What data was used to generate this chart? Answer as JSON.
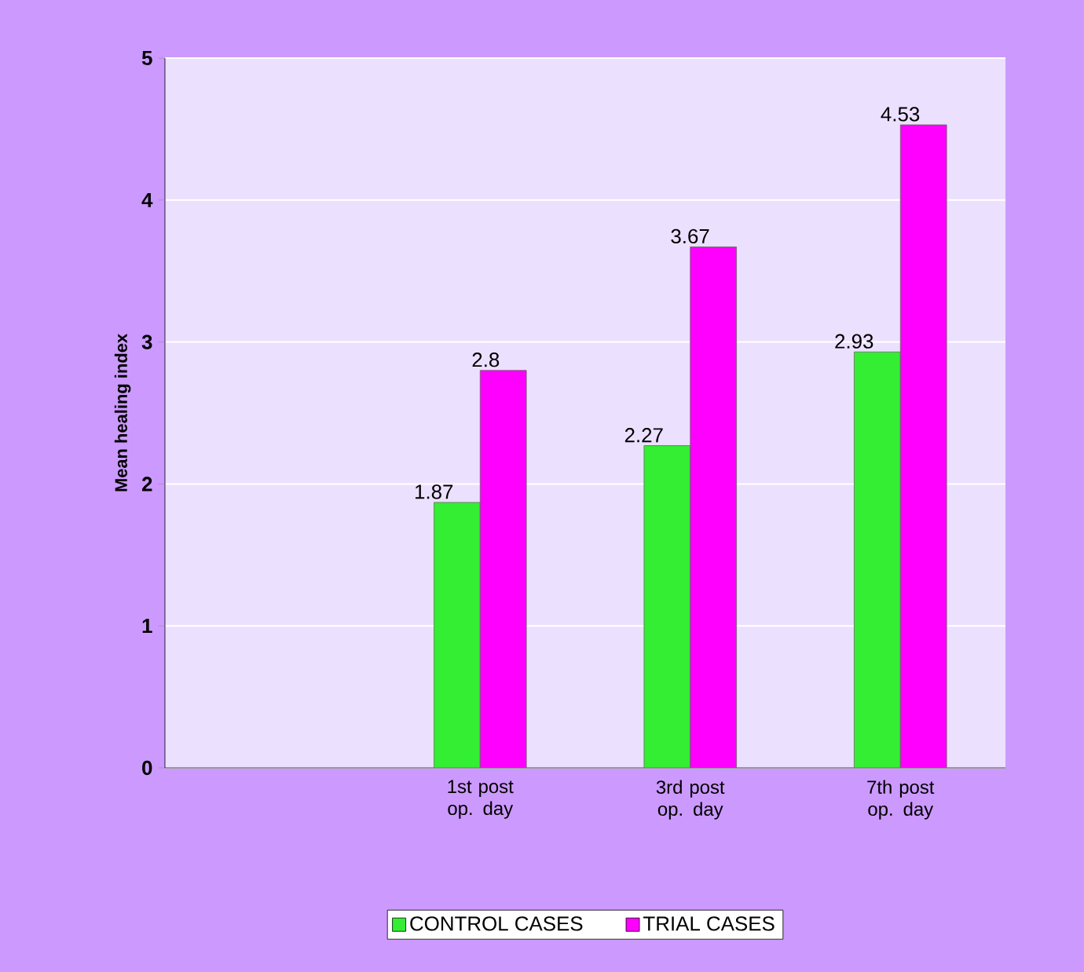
{
  "chart_data": {
    "type": "bar",
    "ylabel": "Mean healing index",
    "categories": [
      null,
      "1st post op. day",
      "3rd post op. day",
      "7th post op. day"
    ],
    "series": [
      {
        "name": "CONTROL CASES",
        "color": "#33ee33",
        "values": [
          null,
          1.87,
          2.27,
          2.93
        ]
      },
      {
        "name": "TRIAL CASES",
        "color": "#ff00ff",
        "values": [
          null,
          2.8,
          3.67,
          4.53
        ]
      }
    ],
    "ylim": [
      0,
      5
    ],
    "yticks": [
      0,
      1,
      2,
      3,
      4,
      5
    ],
    "grid": "y",
    "legend": "bottom",
    "data_labels": true
  }
}
